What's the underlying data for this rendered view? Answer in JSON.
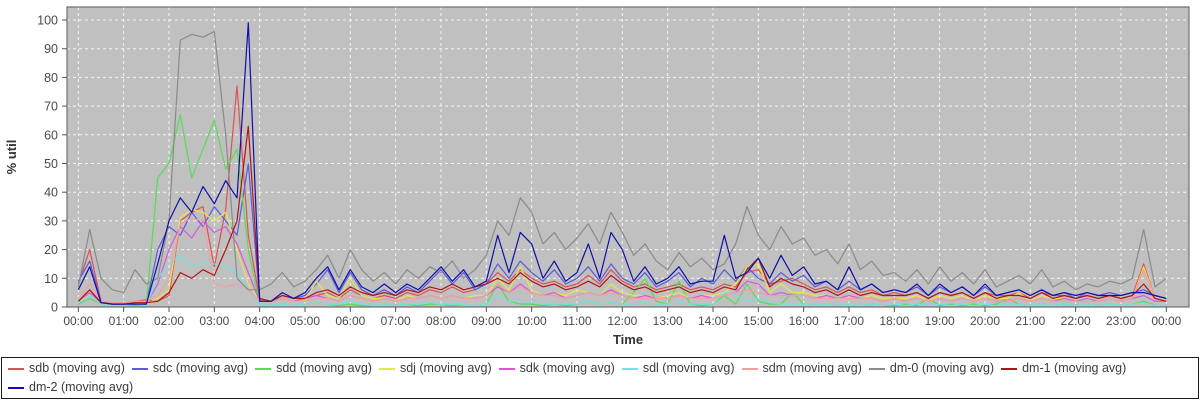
{
  "chart_data": {
    "type": "line",
    "title": "",
    "xlabel": "Time",
    "ylabel": "% util",
    "ylim": [
      0,
      100
    ],
    "grid": "white dashed on gray plot background",
    "legend_position": "bottom",
    "plot_bg": "#c0c0c0",
    "axis_color": "#555555",
    "tick_label_color": "#4a4a4a",
    "axis_title_color": "#333333",
    "y_ticks": [
      0,
      10,
      20,
      30,
      40,
      50,
      60,
      70,
      80,
      90,
      100
    ],
    "x_tick_hours": [
      0,
      1,
      2,
      3,
      4,
      5,
      6,
      7,
      8,
      9,
      10,
      11,
      12,
      13,
      14,
      15,
      16,
      17,
      18,
      19,
      20,
      21,
      22,
      23,
      24
    ],
    "x_tick_labels": [
      "00:00",
      "01:00",
      "02:00",
      "03:00",
      "04:00",
      "05:00",
      "06:00",
      "07:00",
      "08:00",
      "09:00",
      "10:00",
      "11:00",
      "12:00",
      "13:00",
      "14:00",
      "15:00",
      "16:00",
      "17:00",
      "18:00",
      "19:00",
      "20:00",
      "21:00",
      "22:00",
      "23:00",
      "00:00"
    ],
    "x_start_hour": 0,
    "x_step_hours": 0.25,
    "series": [
      {
        "device": "sdb",
        "label": "sdb (moving avg)",
        "color": "#e05050",
        "values": [
          8,
          20,
          2,
          1.5,
          1.5,
          2,
          2.5,
          2,
          4,
          30,
          33,
          35,
          14,
          34,
          77,
          25,
          2.5,
          2,
          3,
          2,
          3,
          4,
          5,
          3,
          6,
          4,
          3,
          4,
          3,
          5,
          4,
          6,
          5,
          7,
          5,
          6,
          8,
          12,
          9,
          13,
          10,
          8,
          9,
          7,
          8,
          11,
          8,
          13,
          9,
          7,
          8,
          6,
          7,
          8,
          6,
          7,
          6,
          8,
          7,
          12,
          13,
          8,
          9,
          10,
          8,
          6,
          7,
          5,
          7,
          5,
          6,
          4,
          5,
          4,
          5,
          3,
          5,
          4,
          5,
          3,
          5,
          4,
          4,
          5,
          3,
          5,
          4,
          4,
          3,
          4,
          3,
          4,
          3,
          4,
          15,
          3,
          2
        ]
      },
      {
        "device": "sdc",
        "label": "sdc (moving avg)",
        "color": "#5b5bdc",
        "values": [
          9,
          16,
          2,
          1,
          1,
          1.5,
          1,
          20,
          28,
          25,
          33,
          28,
          35,
          30,
          25,
          50,
          2,
          2,
          4,
          3,
          4,
          8,
          13,
          5,
          12,
          6,
          4,
          6,
          4,
          7,
          5,
          9,
          13,
          8,
          12,
          6,
          8,
          15,
          10,
          16,
          12,
          9,
          13,
          8,
          10,
          14,
          9,
          15,
          10,
          8,
          12,
          7,
          9,
          12,
          7,
          10,
          8,
          13,
          9,
          14,
          10,
          8,
          12,
          9,
          11,
          7,
          9,
          6,
          9,
          6,
          8,
          5,
          6,
          5,
          7,
          4,
          7,
          5,
          7,
          4,
          7,
          4,
          5,
          6,
          4,
          6,
          4,
          5,
          3,
          5,
          4,
          5,
          4,
          5,
          6,
          4,
          3
        ]
      },
      {
        "device": "sdd",
        "label": "sdd (moving avg)",
        "color": "#55dd55",
        "values": [
          1,
          3,
          1,
          0.5,
          0.5,
          0.5,
          0.5,
          45,
          50,
          67,
          45,
          55,
          65,
          48,
          55,
          20,
          1,
          0.5,
          1,
          0.5,
          1,
          1.5,
          1,
          0.5,
          1,
          0.5,
          0.5,
          1,
          0.5,
          1,
          0.5,
          1,
          1,
          0.5,
          1,
          0.5,
          1,
          8,
          2,
          1,
          1,
          0.5,
          1,
          0.5,
          1,
          2,
          1,
          1.5,
          1,
          5,
          10,
          2,
          1,
          9,
          1,
          0.5,
          1,
          4,
          1,
          8,
          2,
          1,
          1,
          5,
          1,
          0.5,
          1,
          0.5,
          1,
          0.5,
          1,
          0.5,
          0.5,
          1,
          0.5,
          3,
          0.5,
          1,
          0.5,
          1,
          0.5,
          1,
          3,
          1,
          0.5,
          1,
          0.5,
          1,
          0.5,
          1,
          0.5,
          1,
          0.5,
          1,
          2,
          0.5,
          0.5
        ]
      },
      {
        "device": "sdj",
        "label": "sdj (moving avg)",
        "color": "#e6e64e",
        "values": [
          2,
          4,
          1,
          1,
          1,
          1.5,
          1,
          3,
          6,
          31,
          34,
          33,
          30,
          33,
          20,
          8,
          2,
          2,
          3,
          2,
          2,
          9,
          4,
          3,
          10,
          4,
          3,
          3,
          2,
          4,
          3,
          4,
          3,
          4,
          3,
          4,
          4,
          10,
          6,
          14,
          6,
          4,
          5,
          4,
          6,
          5,
          4,
          8,
          5,
          4,
          4,
          3,
          4,
          5,
          3,
          4,
          4,
          5,
          8,
          14,
          15,
          5,
          8,
          5,
          5,
          4,
          4,
          3,
          4,
          3,
          4,
          3,
          3,
          3,
          4,
          2,
          4,
          3,
          4,
          2,
          4,
          3,
          3,
          5,
          2,
          4,
          3,
          3,
          2,
          3,
          2,
          3,
          2,
          3,
          14,
          3,
          2
        ]
      },
      {
        "device": "sdk",
        "label": "sdk (moving avg)",
        "color": "#dd55dd",
        "values": [
          2,
          5,
          1.5,
          1,
          1,
          1,
          1,
          8,
          20,
          28,
          24,
          30,
          26,
          28,
          22,
          12,
          2,
          2,
          3,
          2,
          3,
          4,
          3,
          2,
          4,
          3,
          2,
          3,
          2,
          3,
          3,
          4,
          3,
          4,
          3,
          3,
          4,
          7,
          5,
          8,
          5,
          4,
          5,
          3,
          4,
          5,
          4,
          6,
          4,
          3,
          4,
          3,
          3,
          4,
          3,
          4,
          3,
          4,
          5,
          9,
          8,
          4,
          5,
          4,
          4,
          3,
          4,
          3,
          4,
          3,
          3,
          2,
          3,
          2,
          3,
          2,
          3,
          2,
          3,
          2,
          3,
          2,
          2,
          3,
          2,
          3,
          2,
          3,
          2,
          3,
          2,
          3,
          2,
          3,
          4,
          2,
          2
        ]
      },
      {
        "device": "sdl",
        "label": "sdl (moving avg)",
        "color": "#72e2e2",
        "values": [
          1.5,
          4,
          1,
          0.5,
          0.5,
          1,
          0.5,
          10,
          15,
          18,
          14,
          16,
          15,
          14,
          12,
          6,
          1,
          0.5,
          1,
          0.5,
          1,
          1.5,
          1,
          1,
          2,
          1,
          0.5,
          1,
          0.5,
          1,
          1,
          1.5,
          1,
          1,
          1,
          0.5,
          1,
          4,
          2,
          2,
          1.5,
          1,
          1,
          1,
          1,
          2,
          1,
          1.5,
          1,
          1,
          1.5,
          1,
          1,
          1.5,
          1,
          1,
          1,
          5,
          4,
          2,
          3,
          1.5,
          1,
          1,
          1,
          0.5,
          1,
          0.5,
          1,
          0.5,
          1,
          0.5,
          1,
          0.5,
          1,
          0.5,
          1,
          0.5,
          1,
          0.5,
          1,
          0.5,
          1,
          1,
          0.5,
          1,
          0.5,
          1,
          0.5,
          1,
          0.5,
          1,
          0.5,
          1,
          1.5,
          0.5,
          0.5
        ]
      },
      {
        "device": "sdm",
        "label": "sdm (moving avg)",
        "color": "#f0a0a0",
        "values": [
          3,
          8,
          2,
          1.5,
          1.5,
          2,
          2,
          4,
          10,
          29,
          31,
          30,
          8,
          7,
          8,
          6,
          2,
          2,
          3,
          2,
          2,
          3,
          3,
          2,
          4,
          3,
          2,
          3,
          2,
          3,
          3,
          4,
          3,
          4,
          3,
          3,
          4,
          8,
          5,
          7,
          5,
          4,
          4,
          3,
          4,
          5,
          4,
          5,
          4,
          3,
          3,
          3,
          3,
          4,
          3,
          3,
          3,
          4,
          5,
          6,
          5,
          4,
          4,
          4,
          4,
          3,
          3,
          3,
          3,
          3,
          3,
          2,
          3,
          2,
          3,
          2,
          3,
          2,
          3,
          2,
          3,
          2,
          2,
          3,
          2,
          3,
          2,
          2,
          2,
          2,
          2,
          3,
          2,
          3,
          13,
          3,
          2
        ]
      },
      {
        "device": "dm-0",
        "label": "dm-0 (moving avg)",
        "color": "#8a8a8a",
        "values": [
          7,
          27,
          10,
          6,
          5,
          13,
          8,
          10,
          30,
          93,
          95,
          94,
          96,
          60,
          10,
          6,
          6,
          8,
          12,
          7,
          9,
          13,
          18,
          10,
          20,
          13,
          9,
          12,
          8,
          13,
          10,
          14,
          12,
          16,
          10,
          13,
          18,
          30,
          25,
          38,
          33,
          22,
          26,
          20,
          24,
          29,
          22,
          33,
          26,
          18,
          22,
          16,
          13,
          19,
          14,
          17,
          13,
          15,
          22,
          35,
          25,
          20,
          28,
          22,
          24,
          18,
          20,
          15,
          22,
          13,
          16,
          11,
          12,
          9,
          13,
          8,
          14,
          9,
          12,
          8,
          13,
          7,
          9,
          11,
          8,
          13,
          7,
          9,
          6,
          8,
          7,
          9,
          8,
          10,
          27,
          7,
          10
        ]
      },
      {
        "device": "dm-1",
        "label": "dm-1 (moving avg)",
        "color": "#b01414",
        "values": [
          2,
          6,
          1.5,
          1,
          1,
          1.5,
          1.5,
          2,
          5,
          12,
          10,
          13,
          11,
          20,
          30,
          63,
          3,
          2,
          4,
          3,
          3,
          5,
          6,
          4,
          7,
          5,
          4,
          5,
          4,
          6,
          5,
          7,
          6,
          8,
          6,
          7,
          8,
          10,
          8,
          12,
          9,
          7,
          8,
          6,
          7,
          9,
          7,
          11,
          8,
          6,
          7,
          5,
          6,
          7,
          5,
          6,
          5,
          7,
          6,
          13,
          17,
          7,
          10,
          8,
          7,
          5,
          6,
          4,
          6,
          4,
          5,
          4,
          4,
          4,
          5,
          3,
          5,
          4,
          5,
          3,
          5,
          3,
          4,
          4,
          3,
          5,
          3,
          4,
          3,
          4,
          3,
          4,
          3,
          4,
          8,
          3,
          2
        ]
      },
      {
        "device": "dm-2",
        "label": "dm-2 (moving avg)",
        "color": "#1010a8",
        "values": [
          6,
          14,
          1.5,
          1,
          1,
          1,
          1,
          15,
          30,
          38,
          33,
          42,
          36,
          44,
          38,
          99,
          2,
          2,
          5,
          3,
          5,
          10,
          14,
          6,
          13,
          7,
          5,
          8,
          5,
          8,
          6,
          10,
          14,
          9,
          13,
          7,
          9,
          25,
          12,
          26,
          22,
          10,
          16,
          9,
          12,
          22,
          10,
          26,
          20,
          9,
          14,
          8,
          10,
          14,
          8,
          9,
          9,
          25,
          10,
          12,
          17,
          10,
          18,
          11,
          14,
          8,
          9,
          6,
          14,
          6,
          8,
          5,
          6,
          5,
          8,
          4,
          8,
          5,
          7,
          4,
          8,
          4,
          5,
          6,
          4,
          6,
          4,
          5,
          4,
          5,
          4,
          4,
          4,
          5,
          5,
          4,
          3
        ]
      }
    ]
  }
}
